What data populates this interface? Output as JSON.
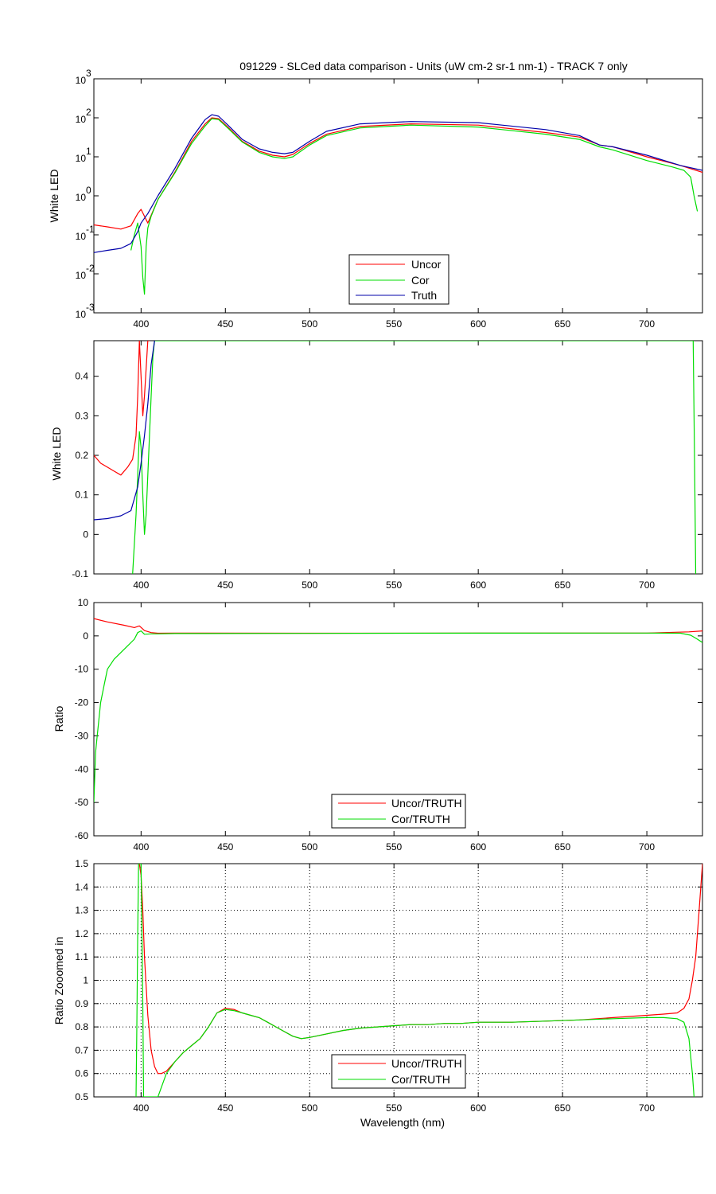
{
  "figure_title": "091229 - SLCed data comparison - Units (uW cm-2 sr-1 nm-1) - TRACK 7 only",
  "colors": {
    "uncor": "#ff0000",
    "cor": "#00dd00",
    "truth": "#0000aa",
    "axis": "#000000",
    "grid": "#000000"
  },
  "chart_data": [
    {
      "type": "line",
      "ylabel": "White LED",
      "xlim": [
        372,
        733
      ],
      "yscale": "log",
      "ylim_exp": [
        -3,
        3
      ],
      "yticks": [
        -3,
        -2,
        -1,
        0,
        1,
        2,
        3
      ],
      "xticks": [
        400,
        450,
        500,
        550,
        600,
        650,
        700
      ],
      "legend": {
        "placement": "bottom-center",
        "entries": [
          "Uncor",
          "Cor",
          "Truth"
        ]
      },
      "series": [
        {
          "name": "Uncor",
          "key": "uncor",
          "x": [
            372,
            380,
            388,
            394,
            398,
            400,
            404,
            410,
            420,
            430,
            438,
            442,
            446,
            452,
            460,
            470,
            478,
            485,
            490,
            500,
            510,
            530,
            560,
            600,
            640,
            660,
            672,
            680,
            700,
            720,
            733
          ],
          "y": [
            0.18,
            0.16,
            0.14,
            0.17,
            0.35,
            0.45,
            0.2,
            0.8,
            4,
            25,
            70,
            100,
            95,
            55,
            25,
            14,
            11,
            10,
            11.5,
            22,
            38,
            60,
            70,
            65,
            42,
            32,
            20,
            18,
            10,
            6,
            4
          ]
        },
        {
          "name": "Cor",
          "key": "cor",
          "x": [
            394,
            396,
            398,
            400,
            401,
            402,
            403,
            404,
            406,
            410,
            420,
            430,
            438,
            442,
            446,
            452,
            460,
            470,
            478,
            485,
            490,
            500,
            510,
            530,
            560,
            600,
            640,
            660,
            672,
            680,
            700,
            715,
            722,
            726,
            728,
            730
          ],
          "y": [
            0.04,
            0.1,
            0.2,
            0.05,
            0.008,
            0.003,
            0.05,
            0.15,
            0.3,
            0.8,
            3.8,
            22,
            62,
            95,
            90,
            52,
            24,
            13,
            10,
            9,
            10,
            20,
            35,
            55,
            65,
            58,
            38,
            28,
            18,
            15,
            8,
            5.5,
            4.5,
            3,
            1,
            0.4
          ]
        },
        {
          "name": "Truth",
          "key": "truth",
          "x": [
            372,
            380,
            388,
            394,
            398,
            400,
            404,
            410,
            420,
            430,
            438,
            442,
            446,
            452,
            460,
            470,
            478,
            485,
            490,
            500,
            510,
            530,
            560,
            600,
            640,
            660,
            672,
            680,
            700,
            720,
            733
          ],
          "y": [
            0.035,
            0.04,
            0.045,
            0.06,
            0.12,
            0.2,
            0.35,
            1,
            5,
            30,
            90,
            120,
            110,
            62,
            28,
            16,
            13,
            12,
            13,
            25,
            45,
            70,
            80,
            75,
            50,
            35,
            20,
            18,
            11,
            6,
            4.5
          ]
        }
      ]
    },
    {
      "type": "line",
      "ylabel": "White LED",
      "xlim": [
        372,
        733
      ],
      "ylim": [
        -0.1,
        0.49
      ],
      "yticks": [
        "-0.1",
        "0",
        "0.1",
        "0.2",
        "0.3",
        "0.4"
      ],
      "xticks": [
        400,
        450,
        500,
        550,
        600,
        650,
        700
      ],
      "series": [
        {
          "key": "uncor",
          "x": [
            372,
            376,
            380,
            384,
            388,
            392,
            395,
            397,
            398,
            399,
            400,
            401,
            402,
            403,
            404,
            405
          ],
          "y": [
            0.2,
            0.18,
            0.17,
            0.16,
            0.15,
            0.17,
            0.19,
            0.25,
            0.35,
            0.49,
            0.4,
            0.3,
            0.35,
            0.42,
            0.49,
            0.49
          ]
        },
        {
          "key": "cor",
          "x": [
            395,
            397,
            398,
            399,
            400,
            401,
            402,
            403,
            404,
            405,
            406,
            407,
            408,
            727.5,
            728,
            728.5,
            729
          ],
          "y": [
            -0.1,
            0.05,
            0.15,
            0.26,
            0.22,
            0.1,
            0.0,
            0.05,
            0.15,
            0.25,
            0.35,
            0.45,
            0.49,
            0.49,
            0.3,
            0.1,
            -0.1
          ]
        },
        {
          "key": "truth",
          "x": [
            372,
            380,
            388,
            394,
            398,
            400,
            402,
            404,
            406,
            408
          ],
          "y": [
            0.037,
            0.04,
            0.047,
            0.06,
            0.12,
            0.18,
            0.25,
            0.33,
            0.43,
            0.49
          ]
        }
      ]
    },
    {
      "type": "line",
      "ylabel": "Ratio",
      "xlim": [
        372,
        733
      ],
      "ylim": [
        -60,
        10
      ],
      "yticks": [
        -60,
        -50,
        -40,
        -30,
        -20,
        -10,
        0,
        10
      ],
      "xticks": [
        400,
        450,
        500,
        550,
        600,
        650,
        700
      ],
      "legend": {
        "placement": "bottom-center",
        "entries": [
          "Uncor/TRUTH",
          "Cor/TRUTH"
        ]
      },
      "series": [
        {
          "name": "Uncor/TRUTH",
          "key": "uncor",
          "x": [
            372,
            380,
            390,
            396,
            399,
            402,
            406,
            410,
            420,
            500,
            600,
            700,
            725,
            733
          ],
          "y": [
            5.2,
            4.2,
            3.2,
            2.5,
            3,
            1.6,
            1,
            0.8,
            0.85,
            0.8,
            0.82,
            0.85,
            1.2,
            1.5
          ]
        },
        {
          "name": "Cor/TRUTH",
          "key": "cor",
          "x": [
            372,
            373,
            374,
            376,
            378,
            380,
            384,
            388,
            392,
            396,
            398,
            400,
            402,
            406,
            410,
            420,
            500,
            600,
            700,
            720,
            726,
            730,
            733
          ],
          "y": [
            -50,
            -35,
            -30,
            -20,
            -15,
            -10,
            -7,
            -5,
            -3,
            -1,
            1,
            1.5,
            0.5,
            0.6,
            0.6,
            0.7,
            0.75,
            0.82,
            0.84,
            0.8,
            0.2,
            -1,
            -2
          ]
        }
      ]
    },
    {
      "type": "line",
      "ylabel": "Ratio Zooomed in",
      "xlabel": "Wavelength (nm)",
      "xlim": [
        372,
        733
      ],
      "ylim": [
        0.5,
        1.5
      ],
      "yticks": [
        "0.5",
        "0.6",
        "0.7",
        "0.8",
        "0.9",
        "1",
        "1.1",
        "1.2",
        "1.3",
        "1.4",
        "1.5"
      ],
      "xticks": [
        400,
        450,
        500,
        550,
        600,
        650,
        700
      ],
      "grid": true,
      "legend": {
        "placement": "bottom-center",
        "entries": [
          "Uncor/TRUTH",
          "Cor/TRUTH"
        ]
      },
      "series": [
        {
          "name": "Uncor/TRUTH",
          "key": "uncor",
          "x": [
            399,
            400,
            401,
            402,
            404,
            406,
            408,
            410,
            412,
            415,
            420,
            425,
            430,
            435,
            440,
            445,
            450,
            455,
            460,
            465,
            470,
            475,
            480,
            485,
            490,
            495,
            500,
            510,
            520,
            530,
            540,
            550,
            560,
            570,
            580,
            590,
            600,
            620,
            640,
            660,
            680,
            700,
            710,
            718,
            722,
            725,
            727,
            729,
            731,
            732,
            733
          ],
          "y": [
            1.5,
            1.45,
            1.3,
            1.1,
            0.85,
            0.7,
            0.63,
            0.6,
            0.6,
            0.61,
            0.65,
            0.69,
            0.72,
            0.75,
            0.8,
            0.86,
            0.88,
            0.875,
            0.86,
            0.85,
            0.84,
            0.82,
            0.8,
            0.78,
            0.76,
            0.75,
            0.755,
            0.77,
            0.785,
            0.795,
            0.8,
            0.805,
            0.81,
            0.81,
            0.815,
            0.815,
            0.82,
            0.82,
            0.825,
            0.83,
            0.84,
            0.85,
            0.855,
            0.86,
            0.88,
            0.92,
            1.0,
            1.1,
            1.3,
            1.4,
            1.5
          ]
        },
        {
          "name": "Cor/TRUTH",
          "key": "cor",
          "x": [
            397,
            397.5,
            398,
            398.5,
            399,
            400,
            400.5,
            401,
            401.5,
            402,
            402.5,
            403,
            405,
            410,
            415,
            420,
            425,
            430,
            435,
            440,
            445,
            450,
            455,
            460,
            465,
            470,
            475,
            480,
            485,
            490,
            495,
            500,
            510,
            520,
            530,
            540,
            550,
            560,
            570,
            580,
            590,
            600,
            620,
            640,
            660,
            680,
            700,
            710,
            718,
            722,
            725,
            727,
            728
          ],
          "y": [
            0.5,
            0.8,
            1.2,
            1.5,
            1.5,
            1.5,
            1.2,
            0.9,
            0.5,
            0.5,
            0.5,
            0.5,
            0.5,
            0.5,
            0.6,
            0.65,
            0.69,
            0.72,
            0.75,
            0.8,
            0.86,
            0.875,
            0.87,
            0.86,
            0.85,
            0.84,
            0.82,
            0.8,
            0.78,
            0.76,
            0.75,
            0.755,
            0.77,
            0.785,
            0.795,
            0.8,
            0.805,
            0.81,
            0.81,
            0.815,
            0.815,
            0.82,
            0.82,
            0.825,
            0.83,
            0.835,
            0.84,
            0.84,
            0.835,
            0.82,
            0.75,
            0.6,
            0.5
          ]
        }
      ]
    }
  ]
}
